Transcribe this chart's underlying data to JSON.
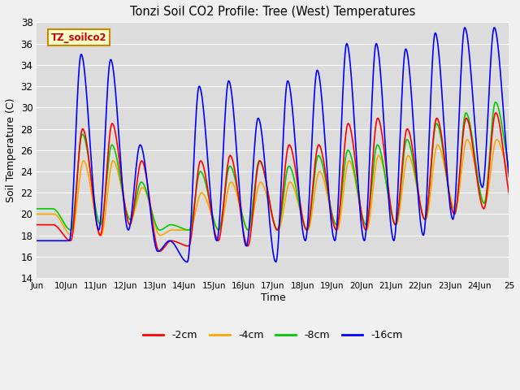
{
  "title": "Tonzi Soil CO2 Profile: Tree (West) Temperatures",
  "xlabel": "Time",
  "ylabel": "Soil Temperature (C)",
  "ylim": [
    14,
    38
  ],
  "xlim": [
    0,
    16
  ],
  "bg_color": "#dcdcdc",
  "legend_label": "TZ_soilco2",
  "series": {
    "-2cm": {
      "color": "#ff0000",
      "lw": 1.2
    },
    "-4cm": {
      "color": "#ffa500",
      "lw": 1.2
    },
    "-8cm": {
      "color": "#00cc00",
      "lw": 1.2
    },
    "-16cm": {
      "color": "#0000ff",
      "lw": 1.2
    }
  },
  "xtick_labels": [
    "Jun",
    "10Jun",
    "11Jun",
    "12Jun",
    "13Jun",
    "14Jun",
    "15Jun",
    "16Jun",
    "17Jun",
    "18Jun",
    "19Jun",
    "20Jun",
    "21Jun",
    "22Jun",
    "23Jun",
    "24Jun",
    "25"
  ],
  "xtick_positions": [
    0,
    1,
    2,
    3,
    4,
    5,
    6,
    7,
    8,
    9,
    10,
    11,
    12,
    13,
    14,
    15,
    16
  ],
  "ytick_positions": [
    14,
    16,
    18,
    20,
    22,
    24,
    26,
    28,
    30,
    32,
    34,
    36,
    38
  ],
  "grid_color": "#ffffff",
  "figsize": [
    6.4,
    4.8
  ],
  "dpi": 100
}
